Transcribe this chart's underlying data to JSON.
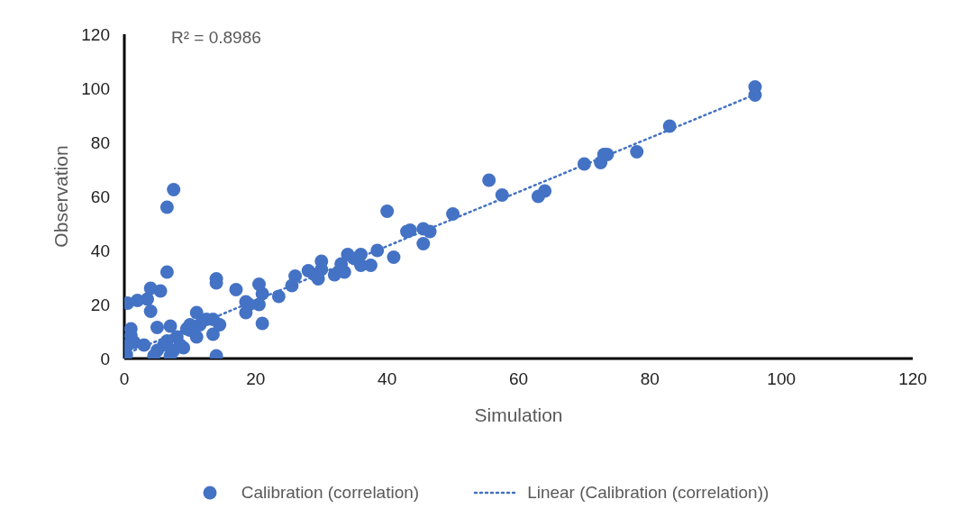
{
  "chart_data": {
    "type": "scatter",
    "xlabel": "Simulation",
    "ylabel": "Observation",
    "annotations": [
      "R² = 0.8986"
    ],
    "xlim": [
      0,
      120
    ],
    "xticks": [
      0,
      20,
      40,
      60,
      80,
      100,
      120
    ],
    "ylim": [
      0,
      120
    ],
    "yticks": [
      0,
      20,
      40,
      60,
      80,
      100,
      120
    ],
    "grid": false,
    "legend": "bottom",
    "marker": "circle",
    "series": [
      {
        "name": "Calibration (correlation)",
        "type": "scatter",
        "color": "#4472c4",
        "x": [
          96,
          96,
          83,
          78,
          73,
          73.5,
          72.5,
          70,
          64,
          63,
          57.5,
          55.5,
          50,
          46.5,
          45.5,
          45.5,
          43.5,
          43,
          40,
          41,
          38.5,
          37.5,
          36,
          36,
          35,
          34,
          33.5,
          33,
          32,
          30,
          30,
          29.5,
          29,
          28,
          26,
          25.5,
          23.5,
          21,
          21,
          20.5,
          20.5,
          19,
          18.5,
          18.5,
          17,
          14.5,
          14,
          14,
          14,
          13.5,
          13.5,
          12.5,
          11.5,
          11,
          11,
          10,
          10,
          9.5,
          9,
          8,
          7.5,
          7,
          7,
          6.5,
          6.5,
          6,
          5.5,
          5,
          5,
          4,
          4,
          3.5,
          2,
          1.5,
          1,
          1,
          0.5,
          0.5,
          6.5,
          7.5,
          8.5,
          3,
          0.3,
          4.5
        ],
        "values": [
          100.5,
          97.5,
          86,
          76.5,
          75.5,
          75.5,
          72.5,
          72,
          62,
          60,
          60.5,
          66,
          53.5,
          47,
          48,
          42.5,
          47.5,
          47,
          54.5,
          37.5,
          40,
          34.5,
          38.5,
          34.5,
          37,
          38.5,
          32,
          35,
          31,
          36,
          33,
          29.5,
          31,
          32.5,
          30.5,
          27,
          23,
          24,
          13,
          27.5,
          20,
          20,
          21,
          17,
          25.5,
          12.5,
          29.5,
          28,
          1,
          14.5,
          9,
          14.5,
          12.5,
          17,
          8,
          12.5,
          10.5,
          11,
          4,
          8,
          62.5,
          1,
          12,
          56,
          32,
          5,
          25,
          11.5,
          3,
          26,
          17.5,
          22,
          21.5,
          6,
          11,
          8.5,
          20.5,
          5,
          6.5,
          3,
          5,
          5,
          1.5,
          1
        ]
      },
      {
        "name": "Linear (Calibration (correlation))",
        "type": "line",
        "color": "#4472c4",
        "line_style": "dotted",
        "marker": "none",
        "x": [
          0,
          96
        ],
        "values": [
          1.5,
          97.7
        ]
      }
    ]
  }
}
